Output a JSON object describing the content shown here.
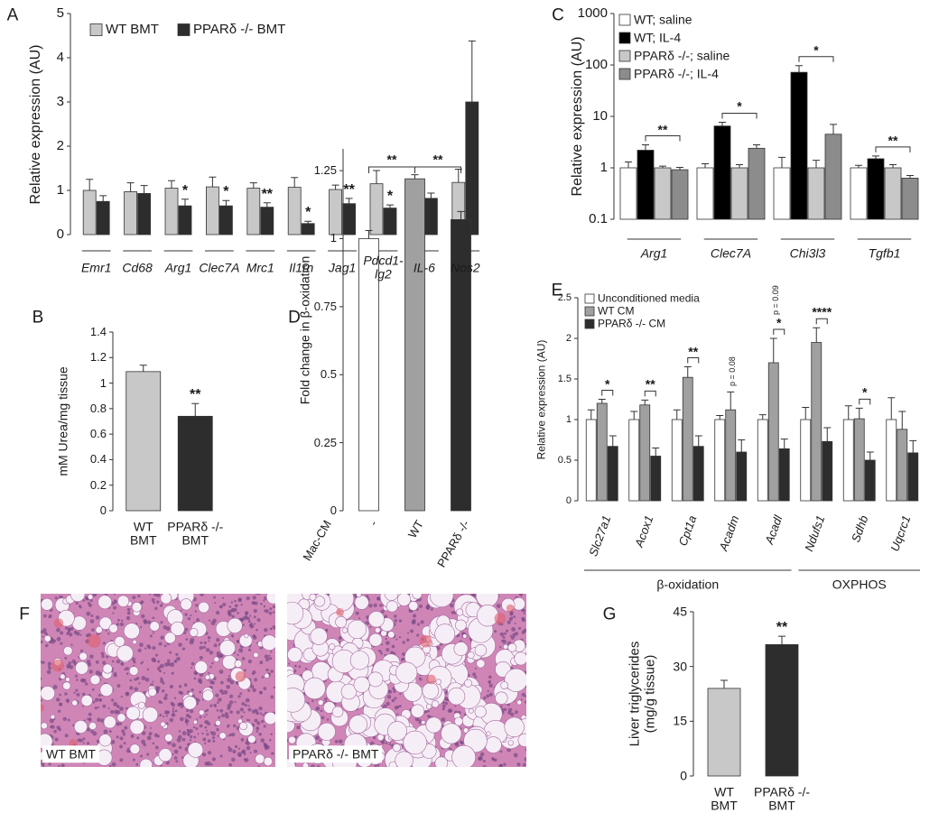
{
  "chart_data": [
    {
      "type": "bar",
      "panel": "A",
      "y_label": "Relative expression (AU)",
      "categories": [
        "Emr1",
        "Cd68",
        "Arg1",
        "Clec7A",
        "Mrc1",
        "Il1rn",
        "Jag1",
        "Pdcd1-\nlg2",
        "IL-6",
        "Nos2"
      ],
      "series": [
        {
          "name": "WT BMT",
          "color": "#c8c8c8",
          "values": [
            1.0,
            0.97,
            1.05,
            1.08,
            1.05,
            1.07,
            1.02,
            1.15,
            1.05,
            1.18
          ],
          "errors": [
            0.25,
            0.2,
            0.17,
            0.22,
            0.12,
            0.22,
            0.1,
            0.3,
            0.15,
            0.3
          ]
        },
        {
          "name": "PPARδ -/- BMT",
          "color": "#2d2d2d",
          "values": [
            0.75,
            0.93,
            0.65,
            0.65,
            0.62,
            0.25,
            0.7,
            0.6,
            0.82,
            3.0
          ],
          "errors": [
            0.13,
            0.18,
            0.15,
            0.12,
            0.1,
            0.05,
            0.12,
            0.07,
            0.12,
            1.38
          ]
        }
      ],
      "significance": [
        null,
        null,
        "*",
        "*",
        "**",
        "*",
        "**",
        "*",
        null,
        null
      ],
      "ylim": [
        0,
        5
      ],
      "yticks": [
        0,
        1,
        2,
        3,
        4,
        5
      ]
    },
    {
      "type": "bar",
      "panel": "B",
      "y_label": "mM Urea/mg tissue",
      "categories": [
        "WT\nBMT",
        "PPARδ -/-\nBMT"
      ],
      "values": [
        1.09,
        0.74
      ],
      "errors": [
        0.05,
        0.1
      ],
      "colors": [
        "#c8c8c8",
        "#2d2d2d"
      ],
      "significance": [
        null,
        "**"
      ],
      "ylim": [
        0,
        1.4
      ],
      "yticks": [
        0,
        0.2,
        0.4,
        0.6,
        0.8,
        1,
        1.2,
        1.4
      ]
    },
    {
      "type": "bar",
      "panel": "C",
      "y_label": "Relative expression (AU)",
      "log_scale": true,
      "categories": [
        "Arg1",
        "Clec7A",
        "Chi3l3",
        "Tgfb1"
      ],
      "series": [
        {
          "name": "WT; saline",
          "color": "#ffffff",
          "values": [
            1.0,
            1.0,
            1.0,
            1.0
          ],
          "errors": [
            0.3,
            0.2,
            0.6,
            0.12
          ]
        },
        {
          "name": "WT; IL-4",
          "color": "#000000",
          "values": [
            2.2,
            6.5,
            72,
            1.5
          ],
          "errors": [
            0.6,
            1.2,
            25,
            0.2
          ]
        },
        {
          "name": "PPARδ -/-; saline",
          "color": "#c8c8c8",
          "values": [
            1.0,
            1.0,
            1.0,
            1.0
          ],
          "errors": [
            0.08,
            0.15,
            0.4,
            0.15
          ]
        },
        {
          "name": "PPARδ -/-; IL-4",
          "color": "#8c8c8c",
          "values": [
            0.92,
            2.4,
            4.5,
            0.63
          ],
          "errors": [
            0.1,
            0.4,
            2.5,
            0.08
          ]
        }
      ],
      "significance": [
        "**",
        "*",
        "*",
        "**"
      ],
      "ylim": [
        0.1,
        1000
      ],
      "yticks": [
        0.1,
        1,
        10,
        100,
        1000
      ]
    },
    {
      "type": "bar",
      "panel": "D",
      "y_label": "Fold change in β-oxidation",
      "x_label": "Mac-CM",
      "categories": [
        "-",
        "WT",
        "PPARδ -/-"
      ],
      "values": [
        1.0,
        1.22,
        1.07
      ],
      "errors": [
        0.03,
        0.015,
        0.03
      ],
      "colors": [
        "#ffffff",
        "#a0a0a0",
        "#2d2d2d"
      ],
      "significance": [
        null,
        "**",
        "**"
      ],
      "ylim": [
        0,
        1.33
      ],
      "yticks": [
        0,
        0.25,
        0.5,
        0.75,
        1,
        1.25
      ]
    },
    {
      "type": "bar",
      "panel": "E",
      "y_label": "Relative expression (AU)",
      "categories": [
        "Slc27a1",
        "Acox1",
        "Cpt1a",
        "Acadm",
        "Acadl",
        "Ndufs1",
        "Sdhb",
        "Uqcrc1"
      ],
      "series": [
        {
          "name": "Unconditioned media",
          "color": "#ffffff",
          "values": [
            1.0,
            1.0,
            1.0,
            1.0,
            1.0,
            1.0,
            1.0,
            1.0
          ],
          "errors": [
            0.12,
            0.1,
            0.12,
            0.05,
            0.06,
            0.15,
            0.17,
            0.27
          ]
        },
        {
          "name": "WT CM",
          "color": "#a0a0a0",
          "values": [
            1.2,
            1.18,
            1.52,
            1.12,
            1.7,
            1.95,
            1.01,
            0.88
          ],
          "errors": [
            0.05,
            0.06,
            0.13,
            0.22,
            0.3,
            0.18,
            0.13,
            0.22
          ]
        },
        {
          "name": "PPARδ -/- CM",
          "color": "#2d2d2d",
          "values": [
            0.67,
            0.55,
            0.67,
            0.6,
            0.64,
            0.73,
            0.5,
            0.59
          ],
          "errors": [
            0.13,
            0.1,
            0.13,
            0.15,
            0.12,
            0.17,
            0.1,
            0.15
          ]
        }
      ],
      "significance": [
        "*",
        "**",
        "**",
        null,
        "*",
        "****",
        "*",
        null
      ],
      "notes": [
        null,
        null,
        null,
        "p = 0.08",
        "p = 0.09",
        null,
        null,
        null
      ],
      "groups": [
        {
          "label": "β-oxidation",
          "span": 5
        },
        {
          "label": "OXPHOS",
          "span": 3
        }
      ],
      "ylim": [
        0,
        2.5
      ],
      "yticks": [
        0,
        0.5,
        1,
        1.5,
        2,
        2.5
      ]
    },
    {
      "type": "bar",
      "panel": "G",
      "y_label": "Liver triglycerides\n(mg/g tissue)",
      "categories": [
        "WT\nBMT",
        "PPARδ -/-\nBMT"
      ],
      "values": [
        24,
        36
      ],
      "errors": [
        2.2,
        2.3
      ],
      "colors": [
        "#c8c8c8",
        "#2d2d2d"
      ],
      "significance": [
        null,
        "**"
      ],
      "ylim": [
        0,
        45
      ],
      "yticks": [
        0,
        15,
        30,
        45
      ]
    }
  ],
  "histology": {
    "panel": "F",
    "captions": [
      "WT BMT",
      "PPARδ -/- BMT"
    ]
  }
}
